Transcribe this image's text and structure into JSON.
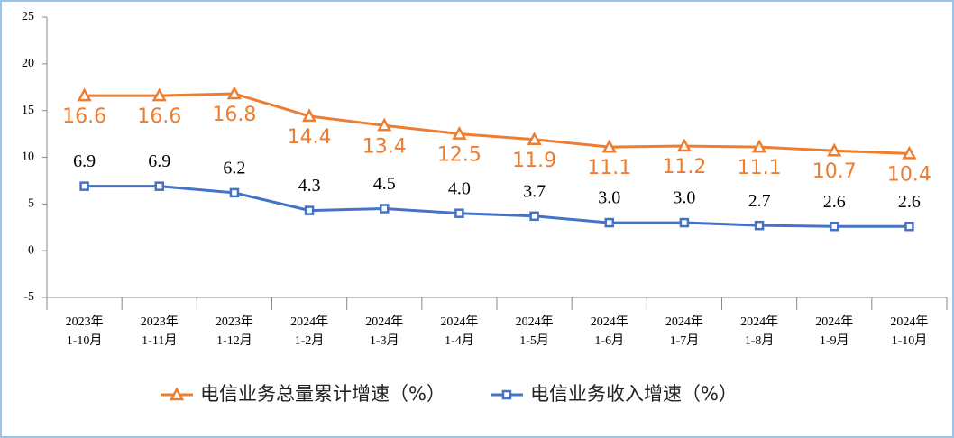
{
  "chart_data": {
    "type": "line",
    "categories": [
      [
        "2023年",
        "1-10月"
      ],
      [
        "2023年",
        "1-11月"
      ],
      [
        "2023年",
        "1-12月"
      ],
      [
        "2024年",
        "1-2月"
      ],
      [
        "2024年",
        "1-3月"
      ],
      [
        "2024年",
        "1-4月"
      ],
      [
        "2024年",
        "1-5月"
      ],
      [
        "2024年",
        "1-6月"
      ],
      [
        "2024年",
        "1-7月"
      ],
      [
        "2024年",
        "1-8月"
      ],
      [
        "2024年",
        "1-9月"
      ],
      [
        "2024年",
        "1-10月"
      ]
    ],
    "series": [
      {
        "name": "电信业务总量累计增速（%）",
        "color": "#ED7D31",
        "marker": "triangle",
        "values": [
          16.6,
          16.6,
          16.8,
          14.4,
          13.4,
          12.5,
          11.9,
          11.1,
          11.2,
          11.1,
          10.7,
          10.4
        ]
      },
      {
        "name": "电信业务收入增速（%）",
        "color": "#4472C4",
        "marker": "square",
        "values": [
          6.9,
          6.9,
          6.2,
          4.3,
          4.5,
          4.0,
          3.7,
          3.0,
          3.0,
          2.7,
          2.6,
          2.6
        ],
        "value_labels": [
          "6.9",
          "6.9",
          "6.2",
          "4.3",
          "4.5",
          "4.0",
          "3.7",
          "3.0",
          "3.0",
          "2.7",
          "2.6",
          "2.6"
        ]
      }
    ],
    "ylim": [
      -5,
      25
    ],
    "yticks": [
      -5,
      0,
      5,
      10,
      15,
      20,
      25
    ],
    "grid": false,
    "legend": "bottom"
  }
}
